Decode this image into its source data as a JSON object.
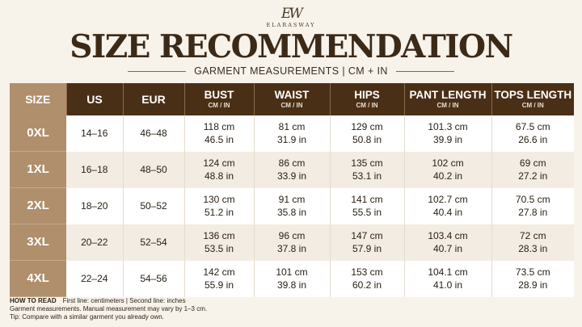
{
  "brand": {
    "monogram": "EW",
    "name": "ELARASWAY"
  },
  "title": "SIZE RECOMMENDATION",
  "subtitle": "GARMENT MEASUREMENTS | CM + IN",
  "table": {
    "headers": [
      {
        "main": "SIZE",
        "sub": ""
      },
      {
        "main": "US",
        "sub": ""
      },
      {
        "main": "EUR",
        "sub": ""
      },
      {
        "main": "BUST",
        "sub": "CM / IN"
      },
      {
        "main": "WAIST",
        "sub": "CM / IN"
      },
      {
        "main": "HIPS",
        "sub": "CM / IN"
      },
      {
        "main": "PANT LENGTH",
        "sub": "CM / IN"
      },
      {
        "main": "TOPS LENGTH",
        "sub": "CM / IN"
      }
    ],
    "rows": [
      {
        "size": "0XL",
        "us": "14–16",
        "eur": "46–48",
        "bust": [
          "118 cm",
          "46.5 in"
        ],
        "waist": [
          "81 cm",
          "31.9 in"
        ],
        "hips": [
          "129 cm",
          "50.8 in"
        ],
        "pant": [
          "101.3 cm",
          "39.9 in"
        ],
        "tops": [
          "67.5 cm",
          "26.6 in"
        ]
      },
      {
        "size": "1XL",
        "us": "16–18",
        "eur": "48–50",
        "bust": [
          "124 cm",
          "48.8 in"
        ],
        "waist": [
          "86 cm",
          "33.9 in"
        ],
        "hips": [
          "135 cm",
          "53.1 in"
        ],
        "pant": [
          "102 cm",
          "40.2 in"
        ],
        "tops": [
          "69 cm",
          "27.2 in"
        ]
      },
      {
        "size": "2XL",
        "us": "18–20",
        "eur": "50–52",
        "bust": [
          "130 cm",
          "51.2 in"
        ],
        "waist": [
          "91 cm",
          "35.8 in"
        ],
        "hips": [
          "141 cm",
          "55.5 in"
        ],
        "pant": [
          "102.7 cm",
          "40.4 in"
        ],
        "tops": [
          "70.5 cm",
          "27.8 in"
        ]
      },
      {
        "size": "3XL",
        "us": "20–22",
        "eur": "52–54",
        "bust": [
          "136 cm",
          "53.5 in"
        ],
        "waist": [
          "96 cm",
          "37.8 in"
        ],
        "hips": [
          "147 cm",
          "57.9 in"
        ],
        "pant": [
          "103.4 cm",
          "40.7 in"
        ],
        "tops": [
          "72 cm",
          "28.3 in"
        ]
      },
      {
        "size": "4XL",
        "us": "22–24",
        "eur": "54–56",
        "bust": [
          "142 cm",
          "55.9 in"
        ],
        "waist": [
          "101 cm",
          "39.8 in"
        ],
        "hips": [
          "153 cm",
          "60.2 in"
        ],
        "pant": [
          "104.1 cm",
          "41.0 in"
        ],
        "tops": [
          "73.5 cm",
          "28.9 in"
        ]
      }
    ]
  },
  "footer": {
    "how_label": "HOW TO READ",
    "how_text": "First line: centimeters  |  Second line: inches",
    "note": "Garment measurements. Manual measurement may vary by 1–3 cm.",
    "tip": "Tip: Compare with a similar garment you already own."
  },
  "colors": {
    "header_bg": "#4a2f17",
    "size_column": "#b08f6c",
    "page_bg": "#f7f2ea",
    "row_alt": "#f3ece2"
  }
}
